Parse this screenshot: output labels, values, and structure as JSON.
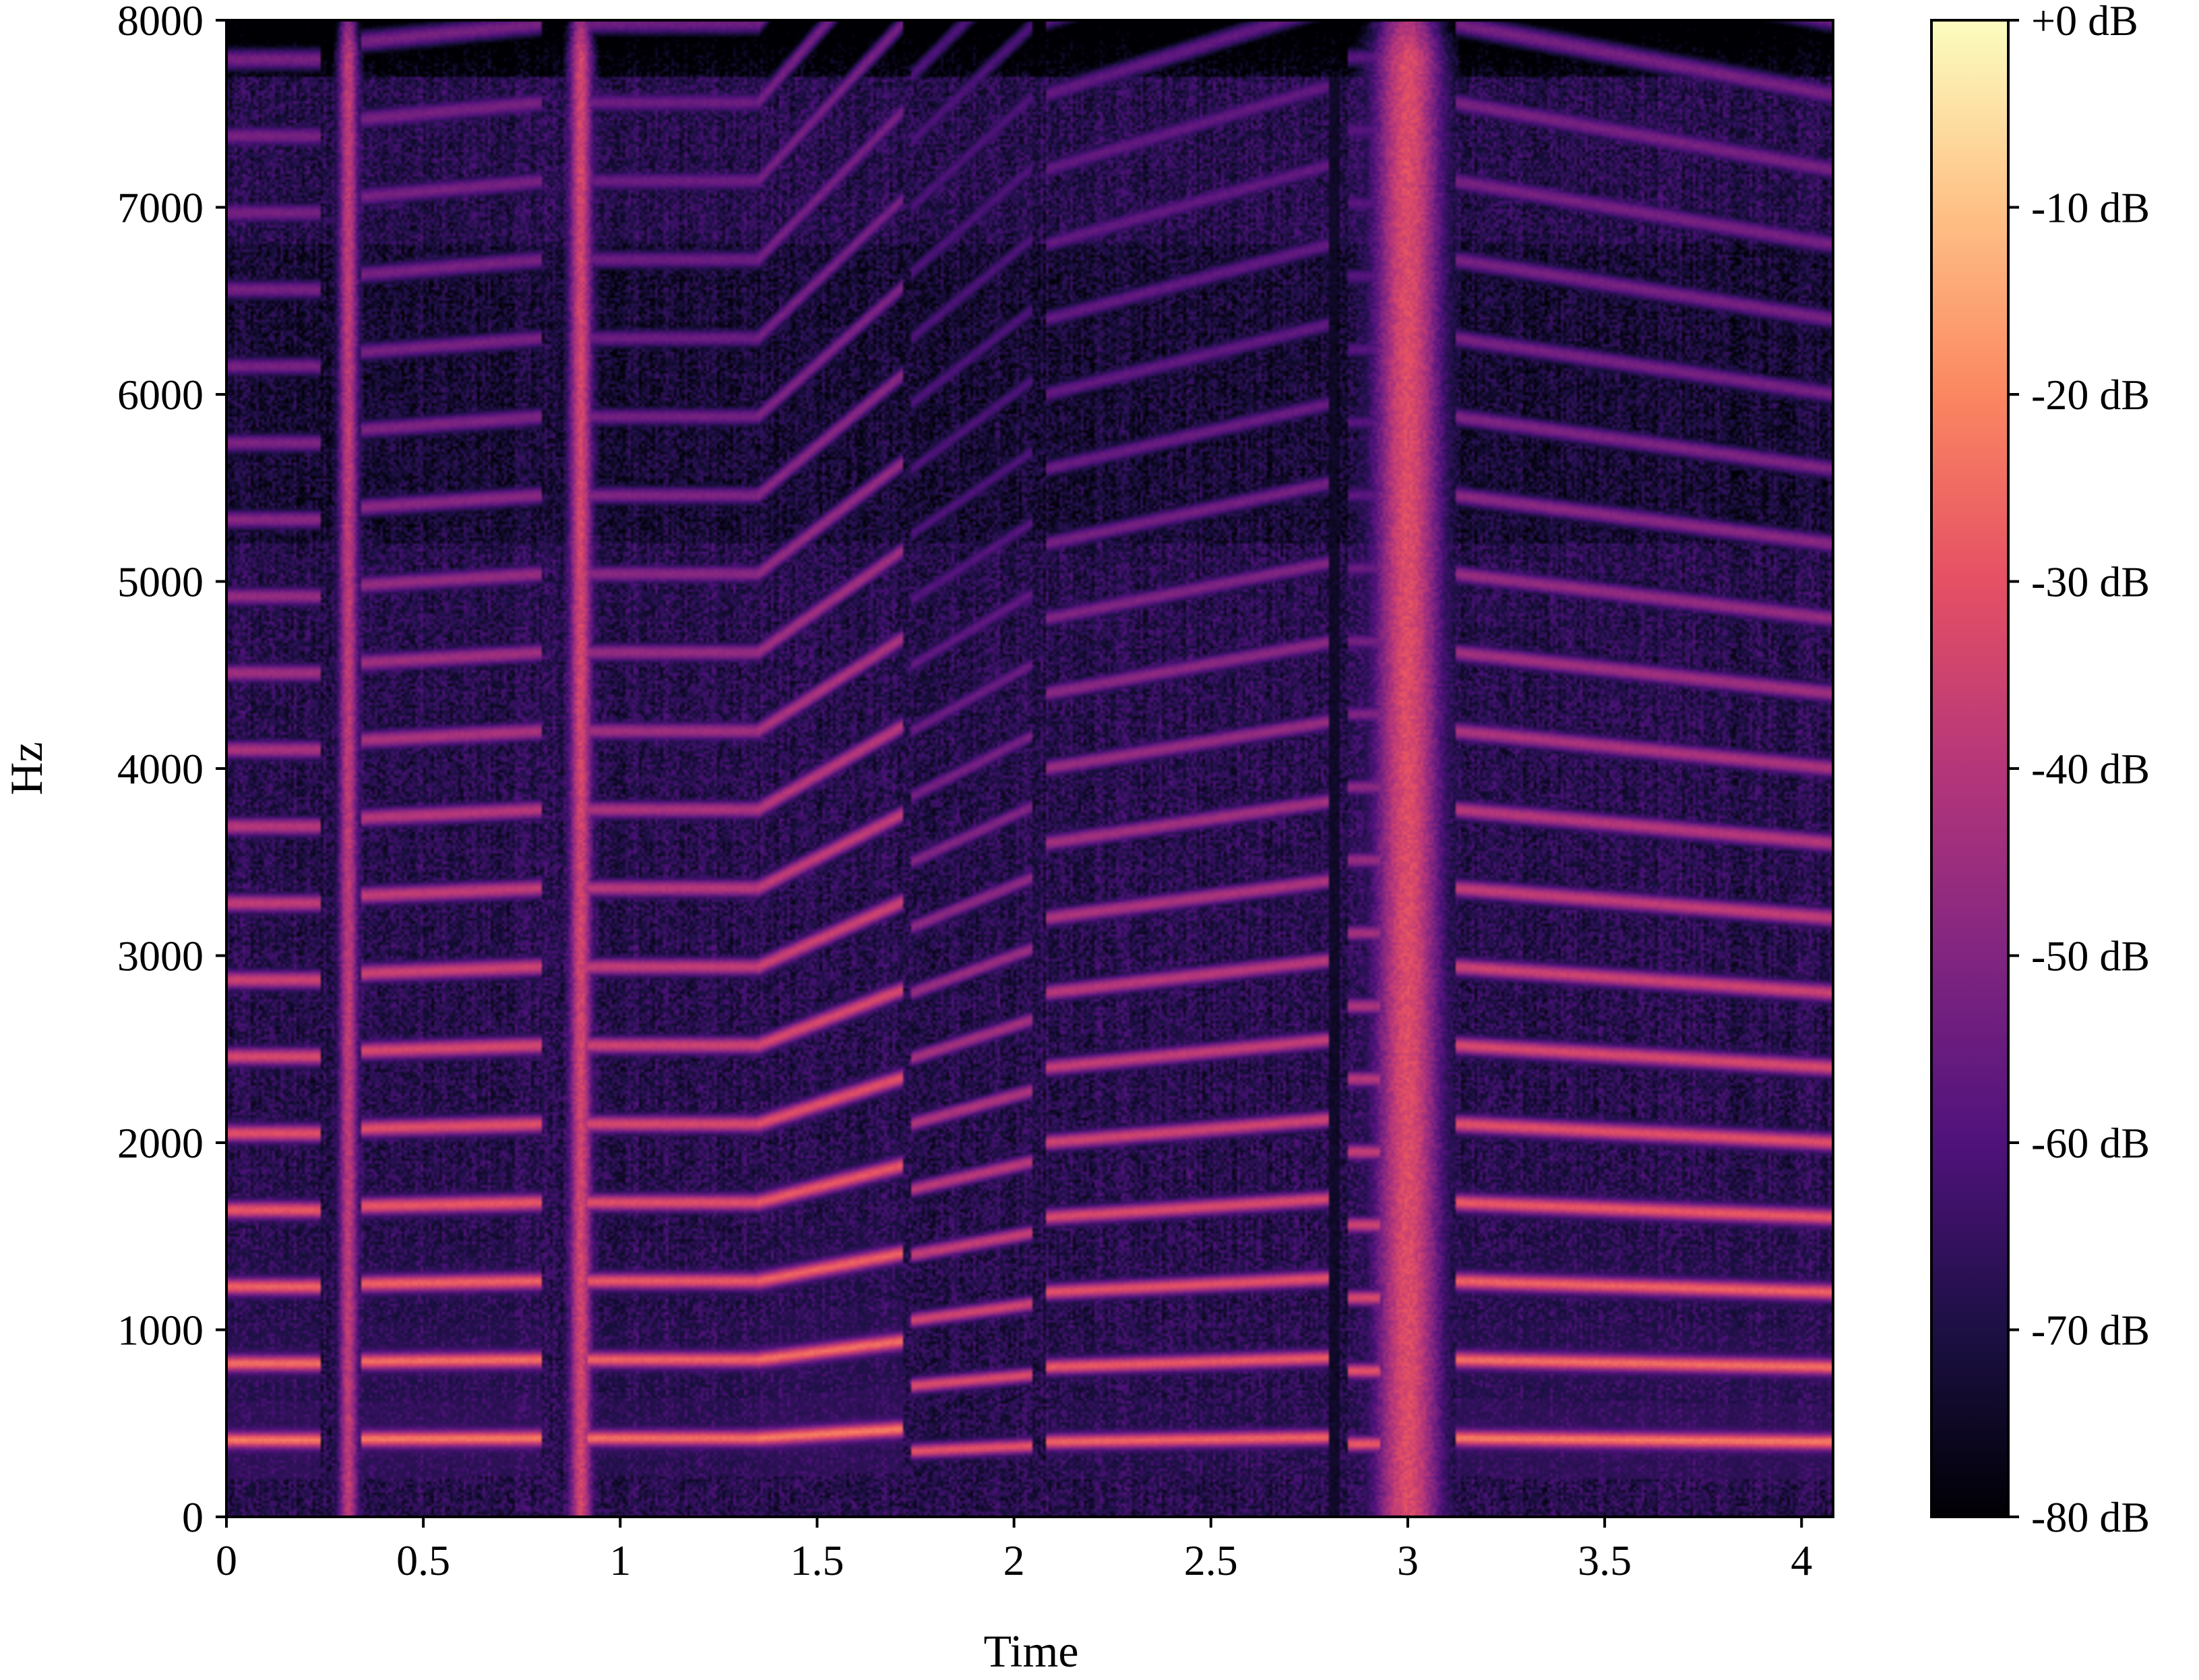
{
  "chart_data": {
    "type": "heatmap",
    "subtype": "spectrogram",
    "title": "",
    "xlabel": "Time",
    "ylabel": "Hz",
    "xlim": [
      0,
      4.08
    ],
    "ylim": [
      0,
      8000
    ],
    "x_ticks": [
      0,
      0.5,
      1,
      1.5,
      2,
      2.5,
      3,
      3.5,
      4
    ],
    "x_tick_labels": [
      "0",
      "0.5",
      "1",
      "1.5",
      "2",
      "2.5",
      "3",
      "3.5",
      "4"
    ],
    "y_ticks": [
      0,
      1000,
      2000,
      3000,
      4000,
      5000,
      6000,
      7000,
      8000
    ],
    "y_tick_labels": [
      "0",
      "1000",
      "2000",
      "3000",
      "4000",
      "5000",
      "6000",
      "7000",
      "8000"
    ],
    "colormap": "magma",
    "colormap_stops": [
      "#000004",
      "#1c1044",
      "#4f127b",
      "#812581",
      "#b5367a",
      "#e55064",
      "#fb8761",
      "#fec287",
      "#fcfdbf"
    ],
    "colorbar": {
      "range_db": [
        -80,
        0
      ],
      "ticks": [
        0,
        -10,
        -20,
        -30,
        -40,
        -50,
        -60,
        -70,
        -80
      ],
      "tick_labels": [
        "+0 dB",
        "-10 dB",
        "-20 dB",
        "-30 dB",
        "-40 dB",
        "-50 dB",
        "-60 dB",
        "-70 dB",
        "-80 dB"
      ]
    },
    "grid": false,
    "background_db": -68,
    "segments": [
      {
        "start": 0.0,
        "end": 0.24,
        "f0": 410,
        "f0_end": 410,
        "level_db": -22
      },
      {
        "start": 0.34,
        "end": 0.8,
        "f0": 415,
        "f0_end": 420,
        "level_db": -22
      },
      {
        "start": 0.92,
        "end": 1.35,
        "f0": 420,
        "f0_end": 420,
        "level_db": -24
      },
      {
        "start": 1.35,
        "end": 1.72,
        "f0": 420,
        "f0_end": 470,
        "level_db": -22
      },
      {
        "start": 1.74,
        "end": 2.05,
        "f0": 350,
        "f0_end": 380,
        "level_db": -30
      },
      {
        "start": 2.08,
        "end": 2.8,
        "f0": 400,
        "f0_end": 425,
        "level_db": -26
      },
      {
        "start": 2.85,
        "end": 2.93,
        "f0": 390,
        "f0_end": 390,
        "level_db": -28
      },
      {
        "start": 3.12,
        "end": 4.08,
        "f0": 420,
        "f0_end": 400,
        "level_db": -22
      }
    ],
    "broadband_bursts": [
      {
        "time": 0.31,
        "width": 0.06,
        "level_db": -38
      },
      {
        "time": 0.9,
        "width": 0.07,
        "level_db": -34
      },
      {
        "time": 3.0,
        "width": 0.2,
        "level_db": -32
      }
    ],
    "silent_gaps": [
      {
        "start": 2.8,
        "end": 2.83
      }
    ]
  }
}
